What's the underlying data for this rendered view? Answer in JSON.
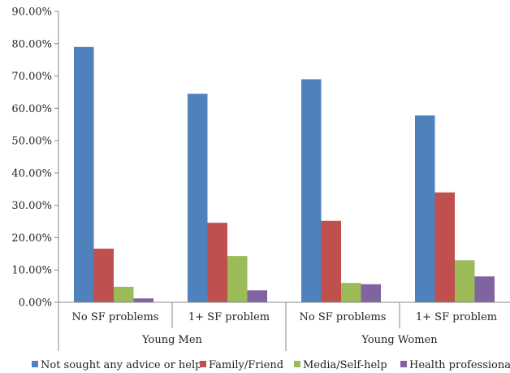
{
  "chart_data": {
    "type": "bar",
    "groups": [
      {
        "label": "Young Men",
        "categories": [
          "No SF problems",
          "1+ SF problem"
        ]
      },
      {
        "label": "Young Women",
        "categories": [
          "No SF problems",
          "1+ SF problem"
        ]
      }
    ],
    "categories": [
      "No SF problems",
      "1+ SF problem",
      "No SF problems",
      "1+ SF problem"
    ],
    "series": [
      {
        "name": "Not sought any advice or help",
        "color": "#4F81BD",
        "values": [
          79.0,
          64.5,
          69.0,
          57.8
        ]
      },
      {
        "name": "Family/Friend",
        "color": "#C0504D",
        "values": [
          16.6,
          24.6,
          25.2,
          34.0
        ]
      },
      {
        "name": "Media/Self-help",
        "color": "#9BBB59",
        "values": [
          4.8,
          14.3,
          6.0,
          13.0
        ]
      },
      {
        "name": "Health professional",
        "color": "#8064A2",
        "values": [
          1.2,
          3.7,
          5.6,
          8.0
        ]
      }
    ],
    "y_ticks": [
      "0.00%",
      "10.00%",
      "20.00%",
      "30.00%",
      "40.00%",
      "50.00%",
      "60.00%",
      "70.00%",
      "80.00%",
      "90.00%"
    ],
    "ylim": [
      0,
      90
    ],
    "grid": false,
    "legend": "bottom"
  }
}
